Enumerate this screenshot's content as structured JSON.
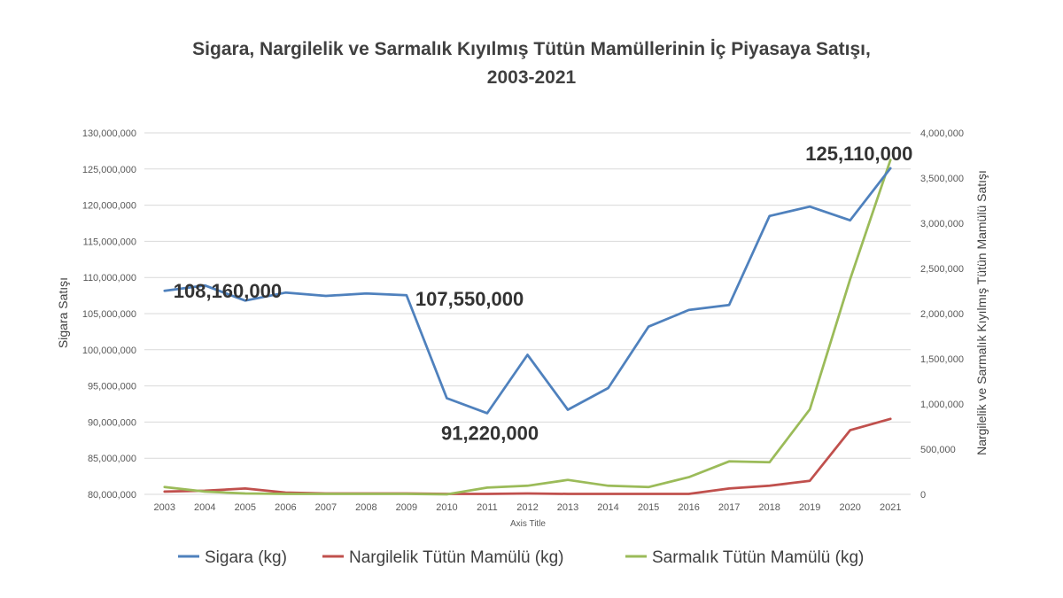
{
  "chart_data": {
    "type": "line",
    "title_line1": "Sigara, Nargilelik ve Sarmalık Kıyılmış Tütün Mamüllerinin İç Piyasaya Satışı,",
    "title_line2": "2003-2021",
    "xlabel": "Axis Title",
    "ylabel_left": "Sigara Satışı",
    "ylabel_right": "Nargilelik ve Sarmalık Kıyılmış Tütün Mamülü Satışı",
    "categories": [
      "2003",
      "2004",
      "2005",
      "2006",
      "2007",
      "2008",
      "2009",
      "2010",
      "2011",
      "2012",
      "2013",
      "2014",
      "2015",
      "2016",
      "2017",
      "2018",
      "2019",
      "2020",
      "2021"
    ],
    "y_left": {
      "min": 80000000,
      "max": 130000000,
      "ticks": [
        80000000,
        85000000,
        90000000,
        95000000,
        100000000,
        105000000,
        110000000,
        115000000,
        120000000,
        125000000,
        130000000
      ],
      "tick_labels": [
        "80,000,000",
        "85,000,000",
        "90,000,000",
        "95,000,000",
        "100,000,000",
        "105,000,000",
        "110,000,000",
        "115,000,000",
        "120,000,000",
        "125,000,000",
        "130,000,000"
      ]
    },
    "y_right": {
      "min": 0,
      "max": 4000000,
      "ticks": [
        0,
        500000,
        1000000,
        1500000,
        2000000,
        2500000,
        3000000,
        3500000,
        4000000
      ],
      "tick_labels": [
        "0",
        "500,000",
        "1,000,000",
        "1,500,000",
        "2,000,000",
        "2,500,000",
        "3,000,000",
        "3,500,000",
        "4,000,000"
      ]
    },
    "grid": true,
    "legend_position": "bottom",
    "series": [
      {
        "name": "Sigara (kg)",
        "axis": "left",
        "color": "#4f81bd",
        "values": [
          108160000,
          108900000,
          106800000,
          107900000,
          107450000,
          107800000,
          107550000,
          93300000,
          91220000,
          99300000,
          91700000,
          94700000,
          103200000,
          105500000,
          106200000,
          118500000,
          119800000,
          117900000,
          125110000
        ]
      },
      {
        "name": "Nargilelik Tütün Mamülü (kg)",
        "axis": "right",
        "color": "#c0504d",
        "values": [
          30000,
          40000,
          65000,
          20000,
          10000,
          10000,
          10000,
          5000,
          5000,
          10000,
          5000,
          5000,
          5000,
          5000,
          65000,
          95000,
          150000,
          710000,
          835000
        ]
      },
      {
        "name": "Sarmalık Tütün Mamülü (kg)",
        "axis": "right",
        "color": "#9bbb59",
        "values": [
          80000,
          30000,
          10000,
          5000,
          5000,
          5000,
          5000,
          0,
          75000,
          95000,
          160000,
          95000,
          80000,
          190000,
          365000,
          355000,
          940000,
          2380000,
          3700000
        ]
      }
    ],
    "annotations": [
      {
        "text": "108,160,000",
        "category": "2003",
        "value": 108160000
      },
      {
        "text": "107,550,000",
        "category": "2009",
        "value": 107550000
      },
      {
        "text": "91,220,000",
        "category": "2011",
        "value": 91220000
      },
      {
        "text": "125,110,000",
        "category": "2021",
        "value": 125110000
      }
    ]
  }
}
